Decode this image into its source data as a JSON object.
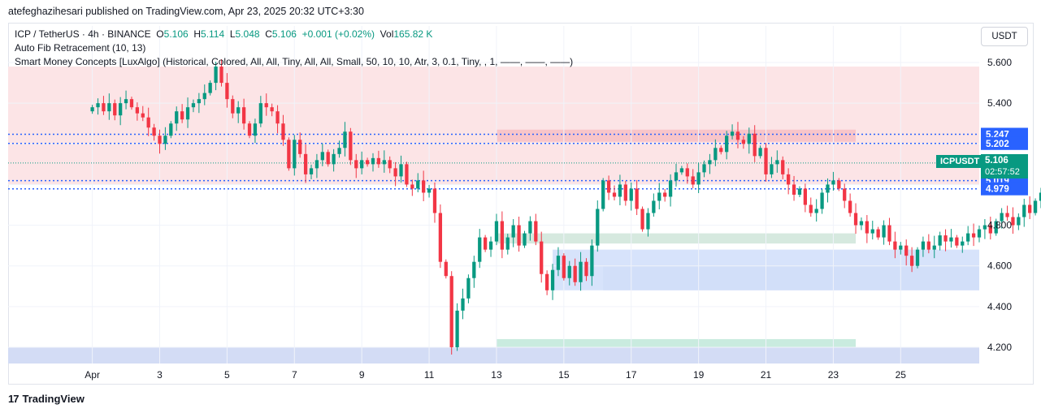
{
  "header": {
    "published": "atefeghazihesari published on TradingView.com, Apr 23, 2025 20:32 UTC+3:30"
  },
  "legend": {
    "symbol": "ICP / TetherUS · 4h · BINANCE",
    "o_label": "O",
    "o": "5.106",
    "h_label": "H",
    "h": "5.114",
    "l_label": "L",
    "l": "5.048",
    "c_label": "C",
    "c": "5.106",
    "change": "+0.001 (+0.02%)",
    "vol_label": "Vol",
    "vol": "165.82 K",
    "indicator1": "Auto Fib Retracement (10, 13)",
    "indicator2": "Smart Money Concepts [LuxAlgo] (Historical, Colored, All, All, Tiny, All, All, Small, 50, 10, 10, Atr, 3, 0.1, Tiny, , 1, ——, ——, ——)"
  },
  "currency_button": "USDT",
  "ticker_label": "ICPUSDT",
  "last_price": {
    "price": "5.106",
    "countdown": "02:57:52"
  },
  "price_labels": [
    {
      "text": "5.247",
      "price": 5.247,
      "color": "#2962ff"
    },
    {
      "text": "5.202",
      "price": 5.202,
      "color": "#2962ff"
    },
    {
      "text": "5.019",
      "price": 5.019,
      "color": "#2962ff"
    },
    {
      "text": "4.979",
      "price": 4.979,
      "color": "#2962ff"
    }
  ],
  "brand": {
    "name": "TradingView",
    "logo_icon": "tradingview-logo-icon"
  },
  "colors": {
    "up": "#089981",
    "down": "#f23645",
    "blue": "#2962ff"
  },
  "chart_data": {
    "type": "candlestick",
    "ylim": [
      4.12,
      5.66
    ],
    "y_ticks": [
      4.2,
      4.4,
      4.6,
      4.8,
      5.0,
      5.2,
      5.4,
      5.6
    ],
    "y_tick_labels": [
      "4.200",
      "4.400",
      "4.600",
      "4.800",
      "",
      "",
      "5.400",
      "5.600"
    ],
    "x_ticks": [
      {
        "label": "Apr",
        "x": 0
      },
      {
        "label": "3",
        "x": 12
      },
      {
        "label": "5",
        "x": 24
      },
      {
        "label": "7",
        "x": 36
      },
      {
        "label": "9",
        "x": 48
      },
      {
        "label": "11",
        "x": 60
      },
      {
        "label": "13",
        "x": 72
      },
      {
        "label": "15",
        "x": 84
      },
      {
        "label": "17",
        "x": 96
      },
      {
        "label": "19",
        "x": 108
      },
      {
        "label": "21",
        "x": 120
      },
      {
        "label": "23",
        "x": 132
      },
      {
        "label": "25",
        "x": 144
      }
    ],
    "x_start": -15,
    "x_end": 158,
    "closes": [
      5.38,
      5.4,
      5.36,
      5.4,
      5.34,
      5.4,
      5.42,
      5.38,
      5.35,
      5.33,
      5.28,
      5.24,
      5.2,
      5.24,
      5.3,
      5.36,
      5.32,
      5.38,
      5.4,
      5.42,
      5.45,
      5.5,
      5.58,
      5.5,
      5.42,
      5.35,
      5.38,
      5.3,
      5.24,
      5.3,
      5.4,
      5.38,
      5.36,
      5.3,
      5.22,
      5.08,
      5.22,
      5.15,
      5.05,
      5.08,
      5.12,
      5.16,
      5.1,
      5.15,
      5.18,
      5.26,
      5.12,
      5.08,
      5.12,
      5.1,
      5.13,
      5.1,
      5.12,
      5.08,
      5.04,
      5.1,
      5.0,
      4.98,
      5.02,
      4.96,
      4.98,
      4.86,
      4.62,
      4.55,
      4.2,
      4.38,
      4.44,
      4.54,
      4.62,
      4.74,
      4.68,
      4.72,
      4.82,
      4.68,
      4.74,
      4.8,
      4.7,
      4.76,
      4.82,
      4.72,
      4.56,
      4.48,
      4.58,
      4.65,
      4.54,
      4.6,
      4.52,
      4.62,
      4.55,
      4.7,
      4.88,
      5.02,
      4.96,
      4.94,
      5.0,
      4.92,
      4.98,
      4.88,
      4.78,
      4.86,
      4.92,
      4.96,
      4.94,
      5.02,
      5.06,
      5.08,
      5.04,
      5.0,
      5.06,
      5.1,
      5.12,
      5.18,
      5.16,
      5.24,
      5.26,
      5.22,
      5.2,
      5.25,
      5.14,
      5.18,
      5.05,
      5.1,
      5.12,
      5.05,
      5.0,
      4.95,
      4.98,
      4.9,
      4.86,
      4.88,
      4.96,
      5.0,
      5.02,
      4.98,
      4.92,
      4.86,
      4.8,
      4.82,
      4.76,
      4.78,
      4.74,
      4.8,
      4.72,
      4.68,
      4.7,
      4.65,
      4.6,
      4.68,
      4.72,
      4.68,
      4.7,
      4.75,
      4.72,
      4.74,
      4.7,
      4.72,
      4.76,
      4.74,
      4.78,
      4.8,
      4.76,
      4.82,
      4.86,
      4.84,
      4.8,
      4.84,
      4.9,
      4.86,
      4.92,
      4.96,
      4.94,
      4.9,
      4.98,
      5.0,
      4.96,
      4.92,
      4.86,
      4.9,
      4.88,
      4.94,
      4.98,
      5.02,
      4.98,
      5.04,
      5.0,
      4.96,
      4.9,
      4.82,
      4.76,
      4.72,
      4.66,
      4.72,
      4.78,
      4.86,
      4.92,
      5.0,
      5.08,
      5.16,
      5.24,
      5.22,
      5.2,
      5.14,
      5.06,
      5.106
    ]
  }
}
